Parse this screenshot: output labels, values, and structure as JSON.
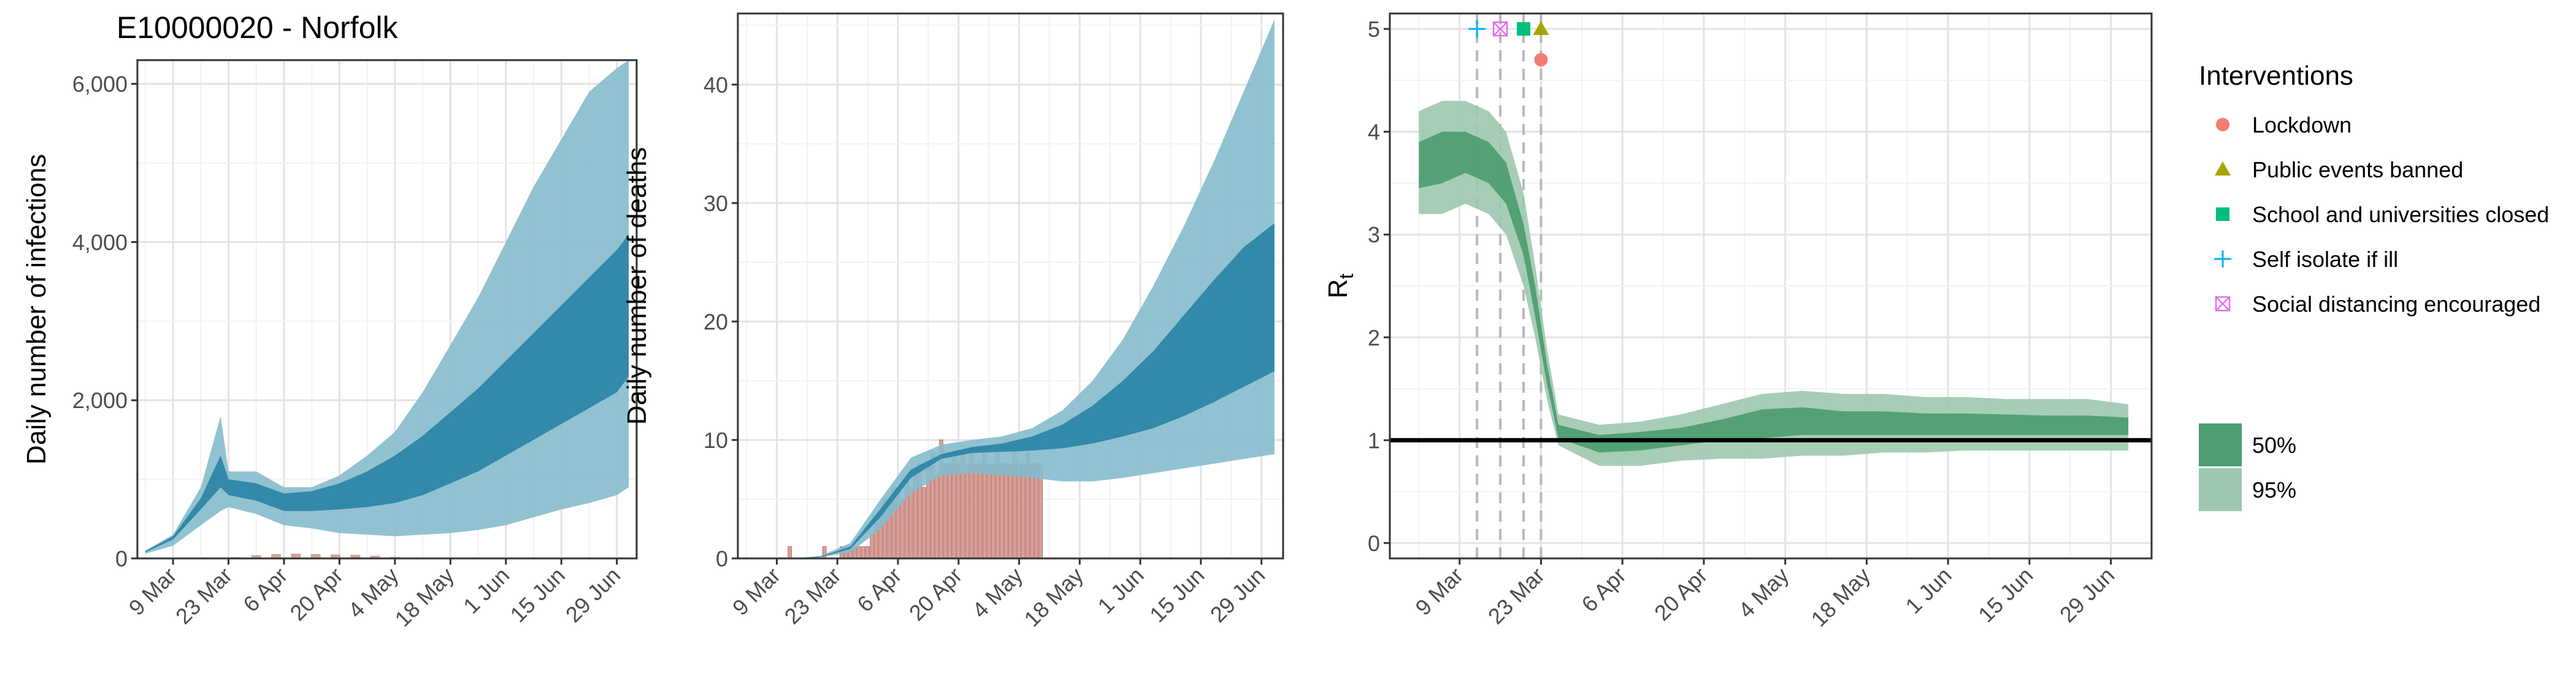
{
  "title": "E10000020 - Norfolk",
  "colors": {
    "blue_dark": "#2E86A6",
    "blue_light": "#85BBCD",
    "green_dark": "#4E9E71",
    "green_light": "#9DC8AF",
    "death_bars": "#D4A39C",
    "death_bars_stroke": "#C06A60",
    "lockdown": "#F27D72",
    "public_events": "#A3A500",
    "schools": "#00BF7D",
    "self_isolate": "#00B0F6",
    "social_distancing": "#E76BF3",
    "reference_line": "#000000"
  },
  "date_ticks": [
    "9 Mar",
    "23 Mar",
    "6 Apr",
    "20 Apr",
    "4 May",
    "18 May",
    "1 Jun",
    "15 Jun",
    "29 Jun"
  ],
  "chart_data": [
    {
      "type": "area",
      "id": "infections",
      "title": "E10000020 - Norfolk",
      "xlabel": "",
      "ylabel": "Daily number of infections",
      "x_range": [
        "2020-02-29",
        "2020-07-04"
      ],
      "ylim": [
        0,
        6300
      ],
      "y_ticks": [
        0,
        2000,
        4000,
        6000
      ],
      "y_tick_labels": [
        "0",
        "2,000",
        "4,000",
        "6,000"
      ],
      "grid": true,
      "x": [
        "2020-03-02",
        "2020-03-09",
        "2020-03-16",
        "2020-03-21",
        "2020-03-23",
        "2020-03-30",
        "2020-04-06",
        "2020-04-13",
        "2020-04-20",
        "2020-04-27",
        "2020-05-04",
        "2020-05-11",
        "2020-05-18",
        "2020-05-25",
        "2020-06-01",
        "2020-06-08",
        "2020-06-15",
        "2020-06-22",
        "2020-06-29",
        "2020-07-02"
      ],
      "series": [
        {
          "name": "95%",
          "lower": [
            60,
            160,
            420,
            600,
            650,
            560,
            420,
            380,
            320,
            300,
            280,
            300,
            320,
            360,
            420,
            520,
            620,
            700,
            800,
            900
          ],
          "upper": [
            100,
            300,
            900,
            1800,
            1100,
            1100,
            900,
            900,
            1050,
            1300,
            1600,
            2100,
            2700,
            3300,
            4000,
            4700,
            5300,
            5900,
            6200,
            6300
          ]
        },
        {
          "name": "50%",
          "lower": [
            75,
            240,
            620,
            900,
            800,
            730,
            600,
            600,
            620,
            650,
            700,
            800,
            950,
            1100,
            1300,
            1500,
            1700,
            1900,
            2100,
            2300
          ],
          "upper": [
            90,
            280,
            760,
            1300,
            1000,
            950,
            820,
            850,
            950,
            1100,
            1300,
            1550,
            1850,
            2150,
            2500,
            2850,
            3200,
            3550,
            3900,
            4100
          ]
        }
      ],
      "observed_cases": [
        {
          "date": "2020-03-25",
          "value": 15
        },
        {
          "date": "2020-03-30",
          "value": 40
        },
        {
          "date": "2020-04-04",
          "value": 55
        },
        {
          "date": "2020-04-09",
          "value": 60
        },
        {
          "date": "2020-04-14",
          "value": 55
        },
        {
          "date": "2020-04-19",
          "value": 50
        },
        {
          "date": "2020-04-24",
          "value": 45
        },
        {
          "date": "2020-04-29",
          "value": 35
        },
        {
          "date": "2020-05-04",
          "value": 20
        }
      ]
    },
    {
      "type": "area",
      "id": "deaths",
      "xlabel": "",
      "ylabel": "Daily number of deaths",
      "x_range": [
        "2020-02-29",
        "2020-07-04"
      ],
      "ylim": [
        0,
        46
      ],
      "y_ticks": [
        0,
        10,
        20,
        30,
        40
      ],
      "y_tick_labels": [
        "0",
        "10",
        "20",
        "30",
        "40"
      ],
      "grid": true,
      "x": [
        "2020-03-12",
        "2020-03-19",
        "2020-03-26",
        "2020-04-02",
        "2020-04-09",
        "2020-04-16",
        "2020-04-23",
        "2020-04-30",
        "2020-05-07",
        "2020-05-14",
        "2020-05-21",
        "2020-05-28",
        "2020-06-04",
        "2020-06-11",
        "2020-06-18",
        "2020-06-25",
        "2020-07-02"
      ],
      "series": [
        {
          "name": "95%",
          "lower": [
            0,
            0.1,
            0.5,
            2.5,
            5.5,
            7,
            7.2,
            7,
            6.8,
            6.5,
            6.5,
            6.8,
            7.2,
            7.6,
            8,
            8.4,
            8.8
          ],
          "upper": [
            0,
            0.2,
            1.3,
            5,
            8.5,
            9.6,
            10,
            10.3,
            11,
            12.5,
            15,
            18.5,
            23,
            28,
            33.5,
            39.5,
            45.5
          ]
        },
        {
          "name": "50%",
          "lower": [
            0,
            0.1,
            0.8,
            3.5,
            6.8,
            8.4,
            8.9,
            9,
            9.1,
            9.3,
            9.7,
            10.3,
            11,
            12,
            13.2,
            14.5,
            15.8
          ],
          "upper": [
            0,
            0.15,
            1,
            4.2,
            7.5,
            8.8,
            9.4,
            9.7,
            10.3,
            11.3,
            12.9,
            15,
            17.5,
            20.5,
            23.5,
            26.3,
            28.3
          ]
        }
      ],
      "observed_deaths": [
        {
          "date": "2020-03-12",
          "value": 1
        },
        {
          "date": "2020-03-18",
          "value": 0
        },
        {
          "date": "2020-03-20",
          "value": 1
        },
        {
          "date": "2020-03-24",
          "value": 1
        },
        {
          "date": "2020-03-25",
          "value": 1
        },
        {
          "date": "2020-03-26",
          "value": 1
        },
        {
          "date": "2020-03-27",
          "value": 1
        },
        {
          "date": "2020-03-28",
          "value": 1
        },
        {
          "date": "2020-03-29",
          "value": 1
        },
        {
          "date": "2020-03-30",
          "value": 1
        },
        {
          "date": "2020-03-31",
          "value": 2
        },
        {
          "date": "2020-04-01",
          "value": 3
        },
        {
          "date": "2020-04-02",
          "value": 4
        },
        {
          "date": "2020-04-03",
          "value": 5
        },
        {
          "date": "2020-04-04",
          "value": 5
        },
        {
          "date": "2020-04-05",
          "value": 6
        },
        {
          "date": "2020-04-06",
          "value": 6
        },
        {
          "date": "2020-04-07",
          "value": 5
        },
        {
          "date": "2020-04-08",
          "value": 7
        },
        {
          "date": "2020-04-09",
          "value": 6
        },
        {
          "date": "2020-04-10",
          "value": 7
        },
        {
          "date": "2020-04-11",
          "value": 8
        },
        {
          "date": "2020-04-12",
          "value": 6
        },
        {
          "date": "2020-04-13",
          "value": 8
        },
        {
          "date": "2020-04-14",
          "value": 9
        },
        {
          "date": "2020-04-15",
          "value": 7
        },
        {
          "date": "2020-04-16",
          "value": 10
        },
        {
          "date": "2020-04-17",
          "value": 8
        },
        {
          "date": "2020-04-18",
          "value": 8
        },
        {
          "date": "2020-04-19",
          "value": 9
        },
        {
          "date": "2020-04-20",
          "value": 8
        },
        {
          "date": "2020-04-21",
          "value": 9
        },
        {
          "date": "2020-04-22",
          "value": 8
        },
        {
          "date": "2020-04-23",
          "value": 9
        },
        {
          "date": "2020-04-24",
          "value": 8
        },
        {
          "date": "2020-04-25",
          "value": 8
        },
        {
          "date": "2020-04-26",
          "value": 9
        },
        {
          "date": "2020-04-27",
          "value": 8
        },
        {
          "date": "2020-04-28",
          "value": 8
        },
        {
          "date": "2020-04-29",
          "value": 9
        },
        {
          "date": "2020-04-30",
          "value": 8
        },
        {
          "date": "2020-05-01",
          "value": 8
        },
        {
          "date": "2020-05-02",
          "value": 8
        },
        {
          "date": "2020-05-03",
          "value": 9
        },
        {
          "date": "2020-05-04",
          "value": 8
        },
        {
          "date": "2020-05-05",
          "value": 8
        },
        {
          "date": "2020-05-06",
          "value": 9
        },
        {
          "date": "2020-05-07",
          "value": 8
        },
        {
          "date": "2020-05-08",
          "value": 8
        },
        {
          "date": "2020-05-09",
          "value": 8
        }
      ]
    },
    {
      "type": "area",
      "id": "rt",
      "xlabel": "",
      "ylabel": "R",
      "ylabel_subscript": "t",
      "x_range": [
        "2020-02-26",
        "2020-07-06"
      ],
      "ylim": [
        -0.15,
        5.15
      ],
      "y_ticks": [
        0,
        1,
        2,
        3,
        4,
        5
      ],
      "y_tick_labels": [
        "0",
        "1",
        "2",
        "3",
        "4",
        "5"
      ],
      "grid": true,
      "reference_line": 1,
      "x": [
        "2020-03-02",
        "2020-03-06",
        "2020-03-10",
        "2020-03-14",
        "2020-03-17",
        "2020-03-20",
        "2020-03-22",
        "2020-03-24",
        "2020-03-26",
        "2020-04-02",
        "2020-04-09",
        "2020-04-16",
        "2020-04-23",
        "2020-04-30",
        "2020-05-07",
        "2020-05-14",
        "2020-05-21",
        "2020-05-28",
        "2020-06-04",
        "2020-06-11",
        "2020-06-18",
        "2020-06-25",
        "2020-07-02"
      ],
      "series": [
        {
          "name": "95%",
          "lower": [
            3.2,
            3.2,
            3.3,
            3.2,
            3.0,
            2.5,
            2.0,
            1.4,
            0.95,
            0.75,
            0.75,
            0.8,
            0.82,
            0.82,
            0.85,
            0.85,
            0.88,
            0.88,
            0.9,
            0.9,
            0.9,
            0.9,
            0.9
          ],
          "upper": [
            4.2,
            4.3,
            4.3,
            4.2,
            4.0,
            3.4,
            2.7,
            1.9,
            1.25,
            1.15,
            1.18,
            1.25,
            1.35,
            1.45,
            1.48,
            1.45,
            1.45,
            1.42,
            1.42,
            1.4,
            1.4,
            1.4,
            1.35
          ]
        },
        {
          "name": "50%",
          "lower": [
            3.45,
            3.5,
            3.6,
            3.5,
            3.3,
            2.8,
            2.2,
            1.55,
            1.02,
            0.88,
            0.9,
            0.95,
            1.0,
            1.02,
            1.05,
            1.05,
            1.05,
            1.05,
            1.05,
            1.05,
            1.05,
            1.05,
            1.05
          ],
          "upper": [
            3.9,
            4.0,
            4.0,
            3.9,
            3.7,
            3.1,
            2.5,
            1.75,
            1.15,
            1.05,
            1.08,
            1.12,
            1.2,
            1.3,
            1.32,
            1.28,
            1.28,
            1.26,
            1.26,
            1.25,
            1.24,
            1.24,
            1.22
          ]
        }
      ],
      "interventions": [
        {
          "name": "Self isolate if ill",
          "date": "2020-03-12",
          "y": 5.0,
          "shape": "plus"
        },
        {
          "name": "Social distancing encouraged",
          "date": "2020-03-16",
          "y": 5.0,
          "shape": "square-x"
        },
        {
          "name": "School and universities closed",
          "date": "2020-03-20",
          "y": 5.0,
          "shape": "square"
        },
        {
          "name": "Public events banned",
          "date": "2020-03-23",
          "y": 5.0,
          "shape": "triangle"
        },
        {
          "name": "Lockdown",
          "date": "2020-03-23",
          "y": 4.7,
          "shape": "circle"
        }
      ]
    }
  ],
  "legend": {
    "title": "Interventions",
    "items": [
      {
        "label": "Lockdown",
        "shape": "circle",
        "color_key": "lockdown"
      },
      {
        "label": "Public events banned",
        "shape": "triangle",
        "color_key": "public_events"
      },
      {
        "label": "School and universities closed",
        "shape": "square",
        "color_key": "schools"
      },
      {
        "label": "Self isolate if ill",
        "shape": "plus",
        "color_key": "self_isolate"
      },
      {
        "label": "Social distancing encouraged",
        "shape": "square-x",
        "color_key": "social_distancing"
      }
    ],
    "ci_items": [
      {
        "label": "50%",
        "color_key": "green_dark"
      },
      {
        "label": "95%",
        "color_key": "green_light"
      }
    ]
  }
}
